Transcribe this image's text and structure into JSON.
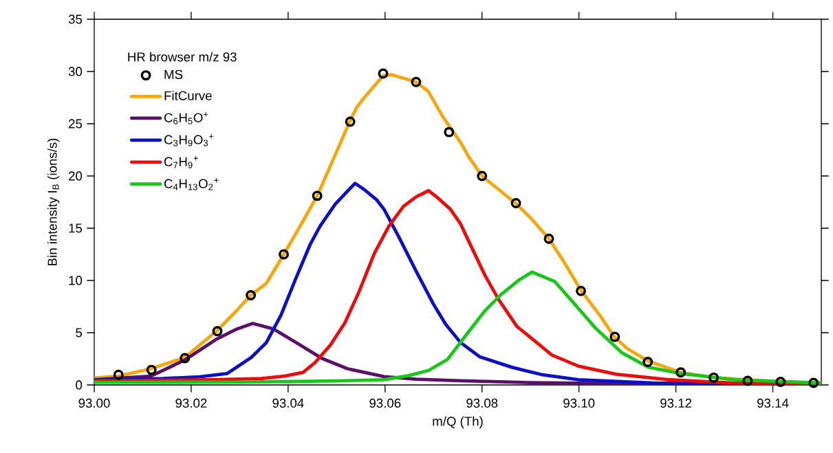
{
  "chart_data": {
    "type": "line",
    "xlabel": "m/Q (Th)",
    "ylabel": "Bin intensity I$_{B}$ (ions/s)",
    "legend_title": "HR browser m/z 93",
    "legend": "top left",
    "line_style": "solid",
    "xlim": [
      93.0,
      93.15
    ],
    "ylim": [
      0,
      35
    ],
    "xticks": [
      {
        "value": 93.0,
        "label": "93.00"
      },
      {
        "value": 93.02,
        "label": "93.02"
      },
      {
        "value": 93.04,
        "label": "93.04"
      },
      {
        "value": 93.06,
        "label": "93.06"
      },
      {
        "value": 93.08,
        "label": "93.08"
      },
      {
        "value": 93.1,
        "label": "93.10"
      },
      {
        "value": 93.12,
        "label": "93.12"
      },
      {
        "value": 93.14,
        "label": "93.14"
      }
    ],
    "yticks": [
      0,
      5,
      10,
      15,
      20,
      25,
      30,
      35
    ],
    "series": [
      {
        "name": "MS",
        "type": "scatter",
        "marker": "circle",
        "color": "#000000",
        "x": [
          93.005,
          93.0118,
          93.0187,
          93.0254,
          93.0323,
          93.0391,
          93.046,
          93.0528,
          93.0596,
          93.0664,
          93.0732,
          93.08,
          93.087,
          93.0938,
          93.1004,
          93.1074,
          93.1142,
          93.121,
          93.1278,
          93.1348,
          93.1416,
          93.1484
        ],
        "values": [
          0.97,
          1.44,
          2.56,
          5.15,
          8.59,
          12.5,
          18.1,
          25.2,
          29.8,
          29.0,
          24.2,
          20.0,
          17.4,
          14.0,
          9.0,
          4.6,
          2.2,
          1.2,
          0.7,
          0.4,
          0.3,
          0.2
        ]
      },
      {
        "name": "FitCurve",
        "type": "line",
        "color": "#f7a70c",
        "x": [
          93.0,
          93.005,
          93.0118,
          93.0187,
          93.0254,
          93.0294,
          93.0323,
          93.0355,
          93.0391,
          93.0421,
          93.046,
          93.0497,
          93.0528,
          93.0542,
          93.0557,
          93.0596,
          93.0613,
          93.0664,
          93.0689,
          93.072,
          93.0756,
          93.0773,
          93.08,
          93.0869,
          93.09,
          93.0938,
          93.0966,
          93.1005,
          93.1044,
          93.1073,
          93.1099,
          93.1142,
          93.121,
          93.1279,
          93.1347,
          93.1415,
          93.15
        ],
        "values": [
          0.67,
          0.85,
          1.56,
          2.63,
          5.23,
          7.13,
          8.59,
          9.72,
          12.5,
          14.9,
          18.1,
          22.0,
          25.3,
          26.6,
          27.5,
          29.6,
          29.7,
          29.0,
          28.1,
          25.6,
          23.2,
          21.8,
          20.0,
          17.4,
          16.0,
          14.0,
          12.0,
          9.0,
          6.6,
          4.6,
          3.5,
          2.3,
          1.2,
          0.7,
          0.5,
          0.3,
          0.2
        ]
      },
      {
        "name": "C$_{6}$H$_{5}$O$^{+}$",
        "type": "line",
        "color": "#5b0f6b",
        "x": [
          93.0,
          93.0117,
          93.0187,
          93.0253,
          93.0294,
          93.0327,
          93.037,
          93.0421,
          93.0471,
          93.0522,
          93.0598,
          93.0664,
          93.0756,
          93.09,
          93.11,
          93.15
        ],
        "values": [
          0.5,
          0.85,
          2.39,
          4.4,
          5.35,
          5.89,
          5.35,
          3.93,
          2.51,
          1.56,
          0.8,
          0.55,
          0.4,
          0.22,
          0.12,
          0.06
        ]
      },
      {
        "name": "C$_{3}$H$_{9}$O$_{3}$$^{+}$",
        "type": "line",
        "color": "#0a10c8",
        "x": [
          93.0,
          93.0142,
          93.0218,
          93.0274,
          93.0324,
          93.0355,
          93.0385,
          93.0416,
          93.0446,
          93.0466,
          93.0497,
          93.0538,
          93.0557,
          93.0583,
          93.0598,
          93.0628,
          93.0664,
          93.0699,
          93.0725,
          93.0756,
          93.0795,
          93.0861,
          93.0922,
          93.0999,
          93.1154,
          93.15
        ],
        "values": [
          0.47,
          0.62,
          0.78,
          1.09,
          2.63,
          4.05,
          6.65,
          10.2,
          13.5,
          15.2,
          17.3,
          19.3,
          18.7,
          17.7,
          16.8,
          14.2,
          10.9,
          7.8,
          5.8,
          4.05,
          2.7,
          1.7,
          1.0,
          0.5,
          0.18,
          0.02
        ]
      },
      {
        "name": "C$_{7}$H$_{9}$$^{+}$",
        "type": "line",
        "color": "#ee0b0b",
        "x": [
          93.0,
          93.0243,
          93.0345,
          93.0395,
          93.0431,
          93.0456,
          93.0487,
          93.0517,
          93.0547,
          93.0578,
          93.0608,
          93.0638,
          93.0664,
          93.069,
          93.0709,
          93.0735,
          93.0756,
          93.0767,
          93.0806,
          93.0834,
          93.0872,
          93.09,
          93.0944,
          93.0999,
          93.1077,
          93.1182,
          93.132,
          93.15
        ],
        "values": [
          0.4,
          0.5,
          0.62,
          0.86,
          1.21,
          2.16,
          3.81,
          5.94,
          9.0,
          12.6,
          15.2,
          17.1,
          18.0,
          18.6,
          17.9,
          16.8,
          15.4,
          14.3,
          10.5,
          8.2,
          5.6,
          4.55,
          2.87,
          1.8,
          1.03,
          0.51,
          0.18,
          0.02
        ]
      },
      {
        "name": "C$_{4}$H$_{13}$O$_{2}$$^{+}$",
        "type": "line",
        "color": "#18c818",
        "x": [
          93.0,
          93.0294,
          93.0497,
          93.0598,
          93.0649,
          93.069,
          93.0729,
          93.0767,
          93.0806,
          93.0839,
          93.0878,
          93.0903,
          93.095,
          93.0988,
          93.1033,
          93.1088,
          93.1143,
          93.121,
          93.132,
          93.15
        ],
        "values": [
          0.25,
          0.27,
          0.38,
          0.5,
          0.9,
          1.4,
          2.45,
          4.77,
          7.1,
          8.64,
          10.1,
          10.8,
          9.9,
          7.9,
          5.5,
          3.1,
          1.7,
          1.1,
          0.5,
          0.18
        ]
      }
    ]
  }
}
